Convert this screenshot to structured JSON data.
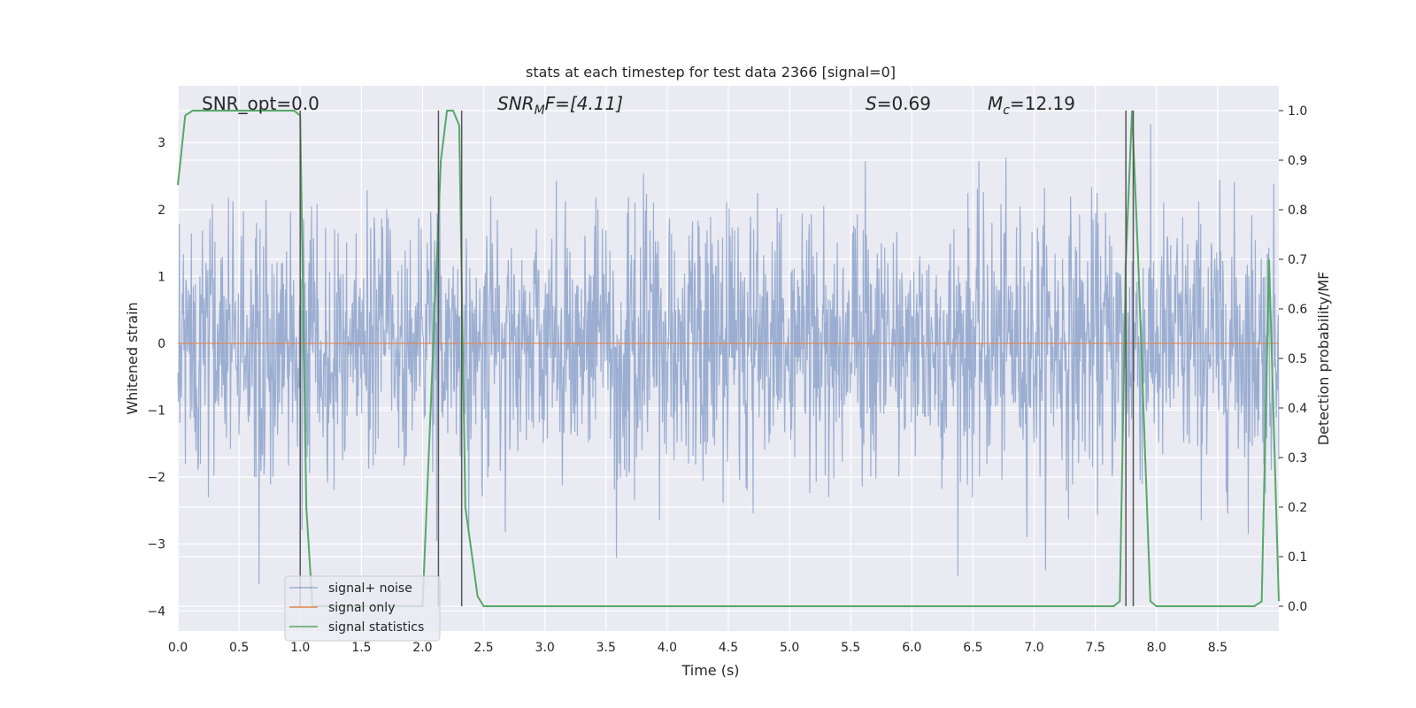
{
  "chart_data": {
    "type": "line",
    "title": "stats at each timestep for test data 2366 [signal=0]",
    "xlabel": "Time (s)",
    "ylabel": "Whitened strain",
    "y2label": "Detection probability/MF",
    "xlim": [
      0,
      9.0
    ],
    "ylim": [
      -4.3,
      3.85
    ],
    "y2lim": [
      -0.05,
      1.05
    ],
    "xticks": [
      "0.0",
      "0.5",
      "1.0",
      "1.5",
      "2.0",
      "2.5",
      "3.0",
      "3.5",
      "4.0",
      "4.5",
      "5.0",
      "5.5",
      "6.0",
      "6.5",
      "7.0",
      "7.5",
      "8.0",
      "8.5"
    ],
    "yticks": [
      "−4",
      "−3",
      "−2",
      "−1",
      "0",
      "1",
      "2",
      "3"
    ],
    "y2ticks": [
      "0.0",
      "0.1",
      "0.2",
      "0.3",
      "0.4",
      "0.5",
      "0.6",
      "0.7",
      "0.8",
      "0.9",
      "1.0"
    ],
    "grid": true,
    "legend_position": "lower-left",
    "annotations": {
      "snr_opt": "SNR_opt=0.0",
      "snr_mf_main": "SNR",
      "snr_mf_sub": "M",
      "snr_mf_rest": "F=[4.11]",
      "s_main": "S",
      "s_rest": "=0.69",
      "mc_main": "M",
      "mc_sub": "c",
      "mc_rest": "=12.19"
    },
    "series": [
      {
        "name": "signal+ noise",
        "color": "#4c72b0",
        "axis": "left",
        "noise": {
          "duration": 9.0,
          "samples": 2200,
          "sigma": 1.0,
          "seed": 2366,
          "min": -3.6,
          "max": 3.45
        }
      },
      {
        "name": "signal only",
        "color": "#dd8452",
        "axis": "left",
        "x": [
          0,
          9.0
        ],
        "y": [
          0,
          0
        ]
      },
      {
        "name": "signal statistics",
        "color": "#55a868",
        "axis": "right",
        "x": [
          0,
          0.06,
          0.12,
          0.5,
          0.95,
          1.0,
          1.05,
          1.1,
          2.0,
          2.1,
          2.15,
          2.2,
          2.25,
          2.3,
          2.35,
          2.45,
          2.5,
          7.65,
          7.7,
          7.75,
          7.8,
          7.85,
          7.95,
          8.0,
          8.8,
          8.86,
          8.92,
          9.0
        ],
        "y": [
          0.85,
          0.99,
          1.0,
          1.0,
          1.0,
          0.99,
          0.2,
          0.0,
          0.0,
          0.6,
          0.9,
          1.0,
          1.0,
          0.97,
          0.2,
          0.02,
          0.0,
          0.0,
          0.01,
          0.7,
          1.0,
          0.7,
          0.01,
          0.0,
          0.0,
          0.01,
          0.7,
          0.01
        ]
      }
    ],
    "vertical_lines": [
      1.0,
      2.13,
      2.32,
      7.75,
      7.81
    ]
  }
}
